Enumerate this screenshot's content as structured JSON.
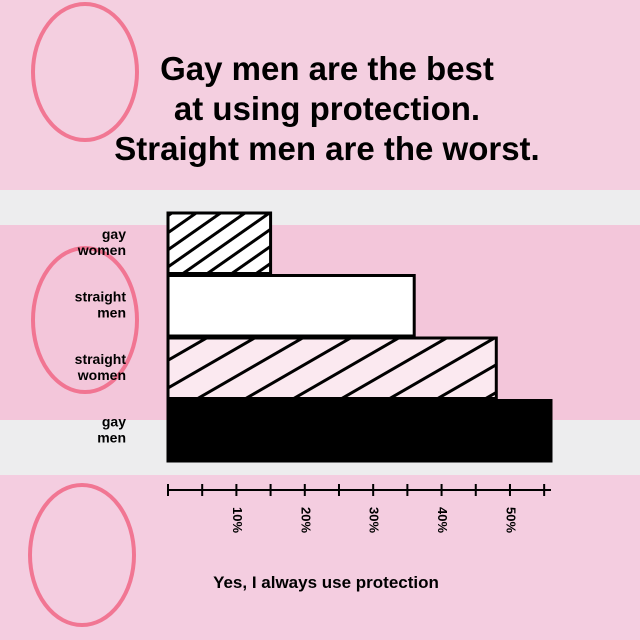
{
  "chart_data": {
    "type": "bar",
    "orientation": "horizontal",
    "title": [
      "Gay men are the best",
      "at using protection.",
      "Straight men are the worst."
    ],
    "categories": [
      "gay women",
      "straight men",
      "straight women",
      "gay men"
    ],
    "values": [
      15,
      36,
      48,
      56
    ],
    "styles": [
      "hatch-dense",
      "outline",
      "hatch-wide",
      "solid"
    ],
    "color": "#000000",
    "xlabel": "Yes, I always use protection",
    "xlim": [
      0,
      56
    ],
    "xticks": [
      {
        "value": 10,
        "label": "10%"
      },
      {
        "value": 20,
        "label": "20%"
      },
      {
        "value": 30,
        "label": "30%"
      },
      {
        "value": 40,
        "label": "40%"
      },
      {
        "value": 50,
        "label": "50%"
      }
    ],
    "xminor_ticks": [
      0,
      5,
      15,
      25,
      35,
      45,
      55
    ]
  }
}
